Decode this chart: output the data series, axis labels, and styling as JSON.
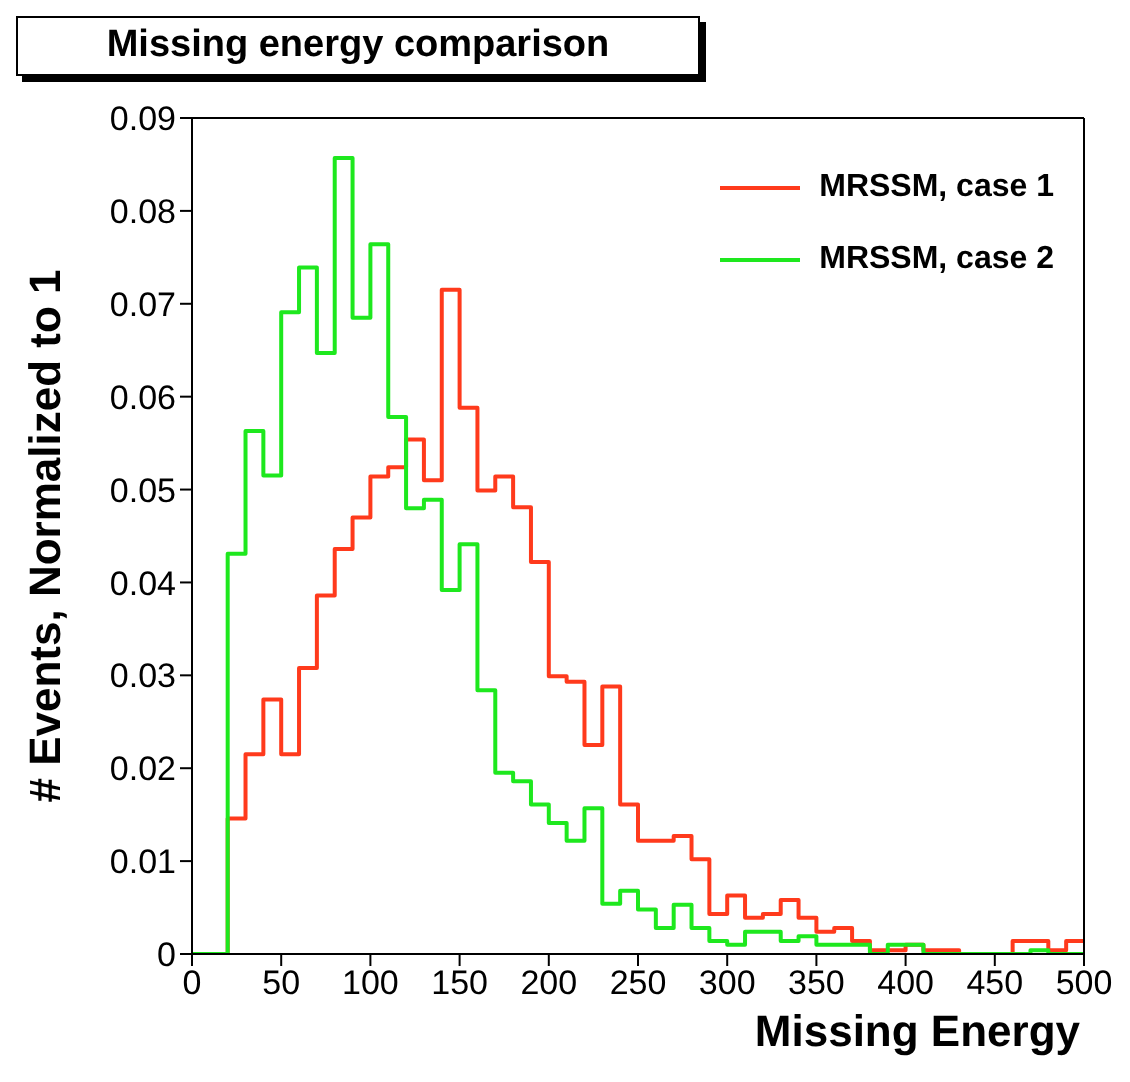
{
  "chart_data": {
    "type": "histogram",
    "title": "Missing energy comparison",
    "xlabel": "Missing Energy",
    "ylabel": "# Events, Normalized to 1",
    "bins": [
      0,
      10,
      20,
      30,
      40,
      50,
      60,
      70,
      80,
      90,
      100,
      110,
      120,
      130,
      140,
      150,
      160,
      170,
      180,
      190,
      200,
      210,
      220,
      230,
      240,
      250,
      260,
      270,
      280,
      290,
      300,
      310,
      320,
      330,
      340,
      350,
      360,
      370,
      380,
      390,
      400,
      410,
      420,
      430,
      440,
      450,
      460,
      470,
      480,
      490,
      500
    ],
    "series": [
      {
        "name": "MRSSM, case 1",
        "color": "#ff3a1c",
        "values": [
          0,
          0,
          0.0146,
          0.0215,
          0.0274,
          0.0215,
          0.0308,
          0.0386,
          0.0436,
          0.047,
          0.0514,
          0.0524,
          0.0554,
          0.051,
          0.0715,
          0.0588,
          0.0499,
          0.0514,
          0.0481,
          0.0422,
          0.0299,
          0.0293,
          0.0225,
          0.0288,
          0.0161,
          0.0122,
          0.0122,
          0.0127,
          0.0102,
          0.0043,
          0.0063,
          0.0039,
          0.0043,
          0.0058,
          0.0039,
          0.0024,
          0.0028,
          0.0014,
          0.0004,
          0.0004,
          0.001,
          0.0004,
          0.0004,
          0,
          0,
          0,
          0.0014,
          0.0014,
          0.0004,
          0.0014
        ]
      },
      {
        "name": "MRSSM, case 2",
        "color": "#1ee81e",
        "values": [
          0,
          0,
          0.0431,
          0.0563,
          0.0515,
          0.0691,
          0.0739,
          0.0647,
          0.0857,
          0.0685,
          0.0764,
          0.0578,
          0.048,
          0.0489,
          0.0392,
          0.0441,
          0.0284,
          0.0195,
          0.0186,
          0.0161,
          0.0141,
          0.0122,
          0.0157,
          0.0054,
          0.0068,
          0.0048,
          0.0028,
          0.0053,
          0.0028,
          0.0014,
          0.001,
          0.0024,
          0.0024,
          0.0014,
          0.0019,
          0.001,
          0.001,
          0.001,
          0,
          0.001,
          0.001,
          0,
          0,
          0,
          0,
          0,
          0,
          0.0004,
          0,
          0
        ]
      }
    ],
    "xlim": [
      0,
      500
    ],
    "xticks": [
      0,
      50,
      100,
      150,
      200,
      250,
      300,
      350,
      400,
      450,
      500
    ],
    "ylim": [
      0,
      0.09
    ],
    "yticks": [
      0,
      0.01,
      0.02,
      0.03,
      0.04,
      0.05,
      0.06,
      0.07,
      0.08,
      0.09
    ],
    "grid": false,
    "legend": "top right"
  }
}
